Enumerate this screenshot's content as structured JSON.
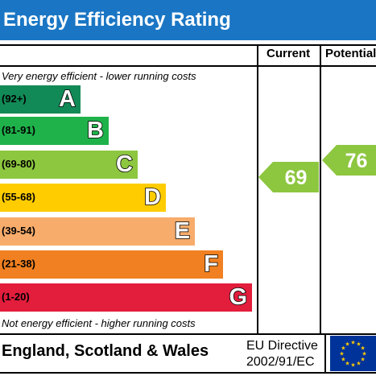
{
  "title": "Energy Efficiency Rating",
  "header": {
    "current_label": "Current",
    "potential_label": "Potential"
  },
  "notes": {
    "top": "Very energy efficient - lower running costs",
    "bottom": "Not energy efficient - higher running costs"
  },
  "chart_data": {
    "type": "bar",
    "categories": [
      "A",
      "B",
      "C",
      "D",
      "E",
      "F",
      "G"
    ],
    "ranges": [
      "(92+)",
      "(81-91)",
      "(69-80)",
      "(55-68)",
      "(39-54)",
      "(21-38)",
      "(1-20)"
    ],
    "colors": [
      "#128a57",
      "#1fb24a",
      "#8dc63f",
      "#ffcc00",
      "#f7ac6b",
      "#f08021",
      "#e31d3c"
    ],
    "current": {
      "value": 69,
      "band": "C",
      "color": "#8dc63f"
    },
    "potential": {
      "value": 76,
      "band": "C",
      "color": "#8dc63f"
    }
  },
  "footer": {
    "country": "England, Scotland & Wales",
    "directive_line1": "EU Directive",
    "directive_line2": "2002/91/EC",
    "flag_color": "#003399",
    "star_color": "#ffcc00"
  }
}
